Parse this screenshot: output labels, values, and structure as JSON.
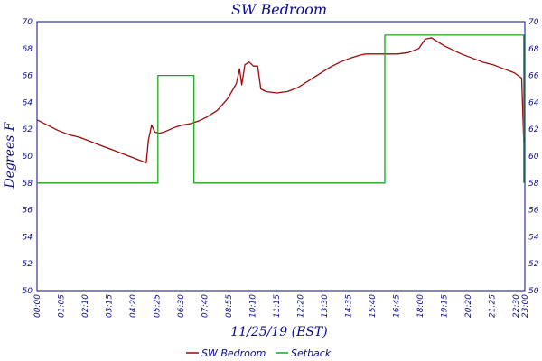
{
  "chart_data": {
    "type": "line",
    "title": "SW Bedroom",
    "xlabel": "11/25/19 (EST)",
    "ylabel": "Degrees F",
    "ylim": [
      50,
      70
    ],
    "yticks": [
      50,
      52,
      54,
      56,
      58,
      60,
      62,
      64,
      66,
      68,
      70
    ],
    "xlim_hours": [
      0,
      23.0
    ],
    "xtick_labels": [
      "00:00",
      "01:05",
      "02:10",
      "03:15",
      "04:20",
      "05:25",
      "06:30",
      "07:40",
      "08:55",
      "10:10",
      "11:15",
      "12:20",
      "13:30",
      "14:35",
      "15:40",
      "16:45",
      "18:00",
      "19:15",
      "20:20",
      "21:25",
      "22:30",
      "23:00"
    ],
    "grid": true,
    "legend_position": "bottom-center",
    "series": [
      {
        "name": "SW Bedroom",
        "color": "#9b0a0a",
        "points": [
          [
            0.0,
            62.7
          ],
          [
            0.5,
            62.3
          ],
          [
            1.0,
            61.9
          ],
          [
            1.5,
            61.6
          ],
          [
            2.0,
            61.4
          ],
          [
            2.5,
            61.1
          ],
          [
            3.0,
            60.8
          ],
          [
            3.5,
            60.5
          ],
          [
            4.0,
            60.2
          ],
          [
            4.5,
            59.9
          ],
          [
            5.15,
            59.5
          ],
          [
            5.25,
            61.2
          ],
          [
            5.4,
            62.3
          ],
          [
            5.55,
            61.8
          ],
          [
            5.75,
            61.7
          ],
          [
            6.0,
            61.8
          ],
          [
            6.3,
            62.0
          ],
          [
            6.6,
            62.2
          ],
          [
            6.85,
            62.3
          ],
          [
            7.2,
            62.4
          ],
          [
            7.6,
            62.6
          ],
          [
            8.0,
            62.9
          ],
          [
            8.5,
            63.4
          ],
          [
            9.0,
            64.3
          ],
          [
            9.4,
            65.4
          ],
          [
            9.55,
            66.5
          ],
          [
            9.65,
            65.3
          ],
          [
            9.8,
            66.8
          ],
          [
            10.0,
            67.0
          ],
          [
            10.2,
            66.7
          ],
          [
            10.4,
            66.7
          ],
          [
            10.55,
            65.0
          ],
          [
            10.8,
            64.8
          ],
          [
            11.3,
            64.7
          ],
          [
            11.8,
            64.8
          ],
          [
            12.3,
            65.1
          ],
          [
            12.8,
            65.6
          ],
          [
            13.3,
            66.1
          ],
          [
            13.8,
            66.6
          ],
          [
            14.3,
            67.0
          ],
          [
            14.8,
            67.3
          ],
          [
            15.2,
            67.5
          ],
          [
            15.5,
            67.6
          ],
          [
            16.0,
            67.6
          ],
          [
            16.5,
            67.6
          ],
          [
            17.0,
            67.6
          ],
          [
            17.5,
            67.7
          ],
          [
            18.0,
            68.0
          ],
          [
            18.3,
            68.7
          ],
          [
            18.6,
            68.8
          ],
          [
            18.9,
            68.5
          ],
          [
            19.2,
            68.2
          ],
          [
            19.6,
            67.9
          ],
          [
            20.0,
            67.6
          ],
          [
            20.5,
            67.3
          ],
          [
            21.0,
            67.0
          ],
          [
            21.5,
            66.8
          ],
          [
            22.0,
            66.5
          ],
          [
            22.5,
            66.2
          ],
          [
            22.85,
            65.8
          ],
          [
            22.95,
            61.0
          ]
        ]
      },
      {
        "name": "Setback",
        "color": "#1aa81a",
        "points": [
          [
            0.0,
            58
          ],
          [
            5.7,
            58
          ],
          [
            5.7,
            66
          ],
          [
            7.4,
            66
          ],
          [
            7.4,
            58
          ],
          [
            16.4,
            58
          ],
          [
            16.4,
            69
          ],
          [
            22.95,
            69
          ],
          [
            22.95,
            58
          ]
        ]
      }
    ]
  }
}
